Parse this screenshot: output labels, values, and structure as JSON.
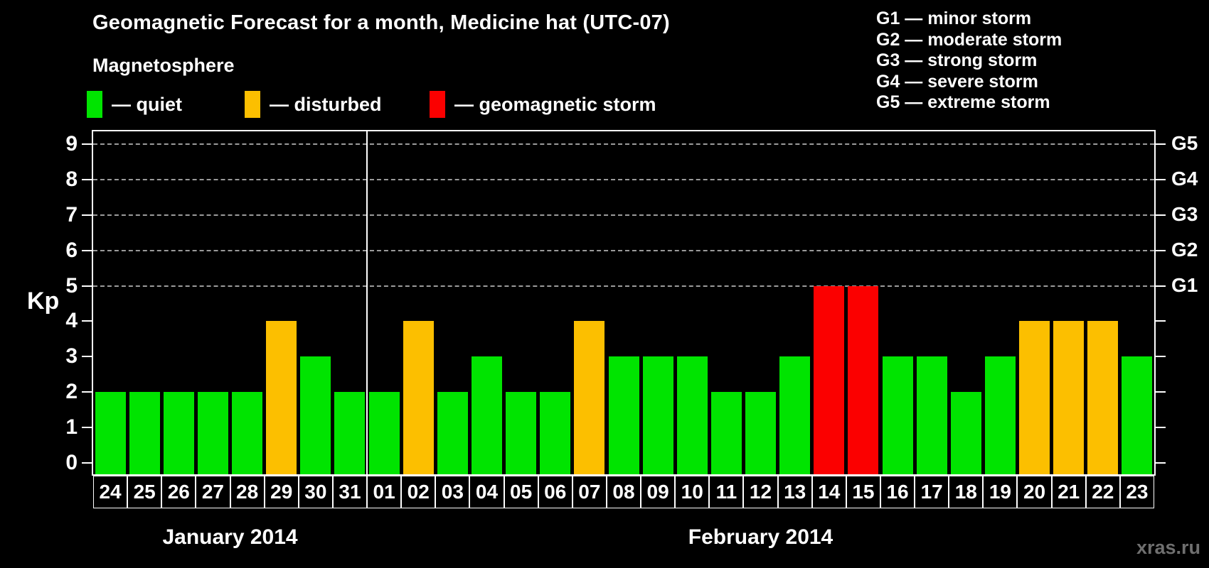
{
  "title": "Geomagnetic Forecast for a month, Medicine hat (UTC-07)",
  "watermark": "xras.ru",
  "colors": {
    "quiet": "#00e400",
    "disturbed": "#fcbf00",
    "storm": "#fb0000",
    "grid": "#9b9b9b",
    "axis": "#ffffff",
    "background": "#000000",
    "watermark": "#6f6f6f"
  },
  "legend": {
    "heading": "Magnetosphere",
    "items": [
      {
        "state": "quiet",
        "label": "— quiet"
      },
      {
        "state": "disturbed",
        "label": "— disturbed"
      },
      {
        "state": "storm",
        "label": "— geomagnetic storm"
      }
    ]
  },
  "g_legend": {
    "items": [
      "G1 — minor storm",
      "G2 — moderate storm",
      "G3 — strong storm",
      "G4 — severe storm",
      "G5 — extreme storm"
    ]
  },
  "chart_data": {
    "type": "bar",
    "ylabel": "Kp",
    "ylim": [
      -0.33,
      9.37
    ],
    "y_ticks": [
      0,
      1,
      2,
      3,
      4,
      5,
      6,
      7,
      8,
      9
    ],
    "gridlines": [
      5,
      6,
      7,
      8,
      9
    ],
    "grid_on": true,
    "right_labels": [
      {
        "kp": 5,
        "label": "G1"
      },
      {
        "kp": 6,
        "label": "G2"
      },
      {
        "kp": 7,
        "label": "G3"
      },
      {
        "kp": 8,
        "label": "G4"
      },
      {
        "kp": 9,
        "label": "G5"
      }
    ],
    "groups": [
      {
        "label": "January 2014",
        "bars": [
          {
            "day": "24",
            "kp": 2,
            "state": "quiet"
          },
          {
            "day": "25",
            "kp": 2,
            "state": "quiet"
          },
          {
            "day": "26",
            "kp": 2,
            "state": "quiet"
          },
          {
            "day": "27",
            "kp": 2,
            "state": "quiet"
          },
          {
            "day": "28",
            "kp": 2,
            "state": "quiet"
          },
          {
            "day": "29",
            "kp": 4,
            "state": "disturbed"
          },
          {
            "day": "30",
            "kp": 3,
            "state": "quiet"
          },
          {
            "day": "31",
            "kp": 2,
            "state": "quiet"
          }
        ]
      },
      {
        "label": "February 2014",
        "bars": [
          {
            "day": "01",
            "kp": 2,
            "state": "quiet"
          },
          {
            "day": "02",
            "kp": 4,
            "state": "disturbed"
          },
          {
            "day": "03",
            "kp": 2,
            "state": "quiet"
          },
          {
            "day": "04",
            "kp": 3,
            "state": "quiet"
          },
          {
            "day": "05",
            "kp": 2,
            "state": "quiet"
          },
          {
            "day": "06",
            "kp": 2,
            "state": "quiet"
          },
          {
            "day": "07",
            "kp": 4,
            "state": "disturbed"
          },
          {
            "day": "08",
            "kp": 3,
            "state": "quiet"
          },
          {
            "day": "09",
            "kp": 3,
            "state": "quiet"
          },
          {
            "day": "10",
            "kp": 3,
            "state": "quiet"
          },
          {
            "day": "11",
            "kp": 2,
            "state": "quiet"
          },
          {
            "day": "12",
            "kp": 2,
            "state": "quiet"
          },
          {
            "day": "13",
            "kp": 3,
            "state": "quiet"
          },
          {
            "day": "14",
            "kp": 5,
            "state": "storm"
          },
          {
            "day": "15",
            "kp": 5,
            "state": "storm"
          },
          {
            "day": "16",
            "kp": 3,
            "state": "quiet"
          },
          {
            "day": "17",
            "kp": 3,
            "state": "quiet"
          },
          {
            "day": "18",
            "kp": 2,
            "state": "quiet"
          },
          {
            "day": "19",
            "kp": 3,
            "state": "quiet"
          },
          {
            "day": "20",
            "kp": 4,
            "state": "disturbed"
          },
          {
            "day": "21",
            "kp": 4,
            "state": "disturbed"
          },
          {
            "day": "22",
            "kp": 4,
            "state": "disturbed"
          },
          {
            "day": "23",
            "kp": 3,
            "state": "quiet"
          }
        ]
      }
    ]
  }
}
